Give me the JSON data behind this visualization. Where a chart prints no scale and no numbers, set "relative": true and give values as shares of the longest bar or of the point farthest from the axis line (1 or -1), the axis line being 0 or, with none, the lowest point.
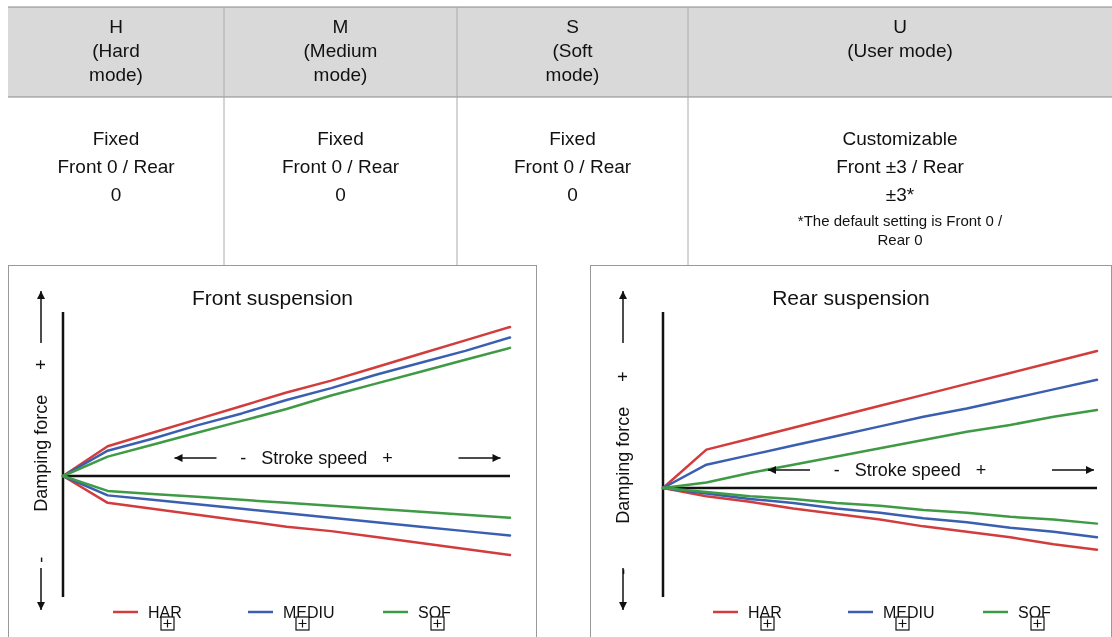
{
  "chart_data": [
    {
      "type": "other",
      "annotations": [
        "H\n(Hard\nmode)",
        "M\n(Medium\nmode)",
        "S\n(Soft\nmode)",
        "U\n(User mode)",
        "Fixed\nFront 0 / Rear\n0",
        "Fixed\nFront 0 / Rear\n0",
        "Fixed\nFront 0 / Rear\n0",
        "Customizable\nFront ±3 / Rear\n±3*",
        "*The default setting is Front 0 /\nRear 0"
      ]
    },
    {
      "type": "line",
      "title": "Front suspension",
      "xlabel": "-   Stroke speed   +",
      "ylabel": "-         Damping force     +",
      "relative": true,
      "legend": "bottom",
      "categories": [
        null,
        null,
        null,
        null,
        null,
        null,
        null,
        null,
        null,
        null,
        null
      ],
      "series": [
        {
          "name": "HAR",
          "color": "#d23c3c",
          "values": [
            0,
            0.2,
            0.29,
            0.38,
            0.47,
            0.56,
            0.64,
            0.73,
            0.82,
            0.91,
            1
          ]
        },
        {
          "name": "MEDIU",
          "color": "#3a5fb0",
          "values": [
            0,
            0.17,
            0.25,
            0.34,
            0.42,
            0.51,
            0.59,
            0.68,
            0.76,
            0.84,
            0.93
          ]
        },
        {
          "name": "SOF",
          "color": "#3f9a45",
          "values": [
            0,
            0.13,
            0.21,
            0.29,
            0.37,
            0.45,
            0.54,
            0.62,
            0.7,
            0.78,
            0.86
          ]
        },
        {
          "color": "#d23c3c",
          "values": [
            0,
            -0.18,
            -0.22,
            -0.26,
            -0.3,
            -0.34,
            -0.37,
            -0.41,
            -0.45,
            -0.49,
            -0.53
          ]
        },
        {
          "color": "#3a5fb0",
          "values": [
            0,
            -0.13,
            -0.16,
            -0.19,
            -0.22,
            -0.25,
            -0.28,
            -0.31,
            -0.34,
            -0.37,
            -0.4
          ]
        },
        {
          "color": "#3f9a45",
          "values": [
            0,
            -0.1,
            -0.12,
            -0.14,
            -0.16,
            -0.18,
            -0.2,
            -0.22,
            -0.24,
            -0.26,
            -0.28
          ]
        }
      ]
    },
    {
      "type": "line",
      "title": "Rear suspension",
      "xlabel": "-   Stroke speed   +",
      "ylabel": "-         Damping force     +",
      "relative": true,
      "legend": "bottom",
      "categories": [
        null,
        null,
        null,
        null,
        null,
        null,
        null,
        null,
        null,
        null,
        null
      ],
      "series": [
        {
          "name": "HAR",
          "color": "#d23c3c",
          "values": [
            0,
            0.28,
            0.36,
            0.44,
            0.52,
            0.6,
            0.68,
            0.76,
            0.84,
            0.92,
            1
          ]
        },
        {
          "name": "MEDIU",
          "color": "#3a5fb0",
          "values": [
            0,
            0.17,
            0.24,
            0.31,
            0.38,
            0.45,
            0.52,
            0.58,
            0.65,
            0.72,
            0.79
          ]
        },
        {
          "name": "SOF",
          "color": "#3f9a45",
          "values": [
            0,
            0.04,
            0.11,
            0.17,
            0.23,
            0.29,
            0.35,
            0.41,
            0.46,
            0.52,
            0.57
          ]
        },
        {
          "color": "#d23c3c",
          "values": [
            0,
            -0.06,
            -0.1,
            -0.15,
            -0.19,
            -0.23,
            -0.28,
            -0.32,
            -0.36,
            -0.41,
            -0.45
          ]
        },
        {
          "color": "#3a5fb0",
          "values": [
            0,
            -0.04,
            -0.08,
            -0.11,
            -0.15,
            -0.18,
            -0.22,
            -0.25,
            -0.29,
            -0.32,
            -0.36
          ]
        },
        {
          "color": "#3f9a45",
          "values": [
            0,
            -0.03,
            -0.06,
            -0.08,
            -0.11,
            -0.13,
            -0.16,
            -0.18,
            -0.21,
            -0.23,
            -0.26
          ]
        }
      ]
    }
  ]
}
